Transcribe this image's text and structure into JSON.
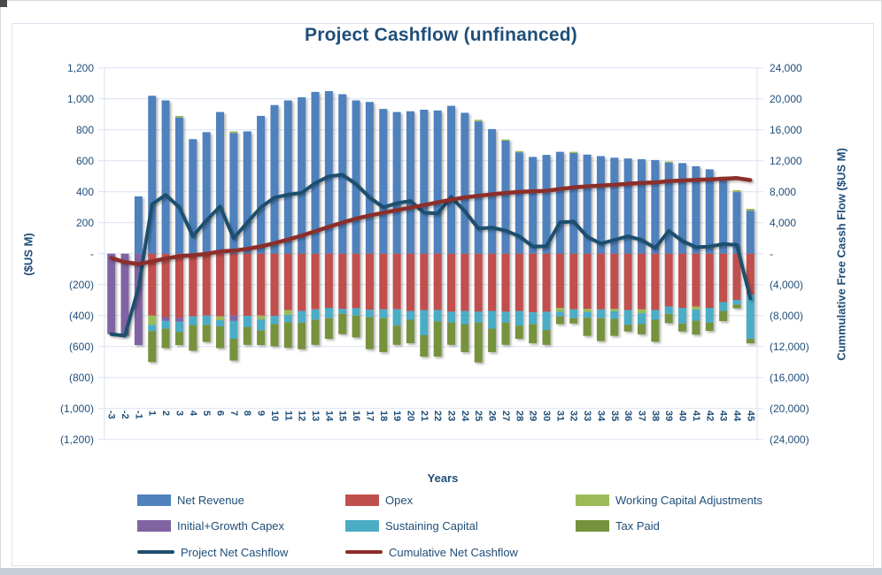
{
  "chart_data": {
    "type": "bar",
    "subtype": "stacked-bar-with-lines",
    "title": "Project Cashflow (unfinanced)",
    "x_axis": {
      "label": "Years",
      "categories": [
        "-3",
        "-2",
        "-1",
        "1",
        "2",
        "3",
        "4",
        "5",
        "6",
        "7",
        "8",
        "9",
        "10",
        "11",
        "12",
        "13",
        "14",
        "15",
        "16",
        "17",
        "18",
        "19",
        "20",
        "21",
        "22",
        "23",
        "24",
        "25",
        "26",
        "27",
        "28",
        "29",
        "30",
        "31",
        "32",
        "33",
        "34",
        "35",
        "36",
        "37",
        "38",
        "39",
        "40",
        "41",
        "42",
        "43",
        "44",
        "45"
      ]
    },
    "y_axis_left": {
      "label": "($US M)",
      "min": -1200,
      "max": 1200,
      "step": 200,
      "tick_labels": [
        "1,200",
        "1,000",
        "800",
        "600",
        "400",
        "200",
        "-",
        "(200)",
        "(400)",
        "(600)",
        "(800)",
        "(1,000)",
        "(1,200)"
      ]
    },
    "y_axis_right": {
      "label": "Cummulative Free Cassh Flow ($US M)",
      "min": -24000,
      "max": 24000,
      "step": 4000,
      "tick_labels": [
        "24,000",
        "20,000",
        "16,000",
        "12,000",
        "8,000",
        "4,000",
        "-",
        "(4,000)",
        "(8,000)",
        "(12,000)",
        "(16,000)",
        "(20,000)",
        "(24,000)"
      ]
    },
    "grid": true,
    "legend_position": "bottom",
    "series": {
      "net_revenue": {
        "name": "Net Revenue",
        "color": "#4F81BD",
        "type": "bar",
        "values": [
          0,
          0,
          370,
          1020,
          990,
          880,
          740,
          785,
          915,
          780,
          790,
          890,
          960,
          990,
          1010,
          1045,
          1050,
          1030,
          990,
          980,
          935,
          915,
          920,
          930,
          925,
          955,
          910,
          855,
          805,
          730,
          655,
          625,
          638,
          658,
          650,
          640,
          630,
          620,
          615,
          610,
          605,
          588,
          585,
          565,
          545,
          490,
          398,
          278
        ]
      },
      "working_capital_adjustments": {
        "name": "Working Capital Adjustments",
        "color": "#9BBB59",
        "type": "bar",
        "values": [
          0,
          0,
          0,
          -60,
          0,
          10,
          0,
          0,
          -25,
          10,
          0,
          -25,
          0,
          -30,
          0,
          0,
          0,
          0,
          0,
          0,
          0,
          0,
          0,
          0,
          0,
          0,
          0,
          10,
          0,
          8,
          8,
          0,
          0,
          -25,
          8,
          -20,
          0,
          -15,
          0,
          -25,
          0,
          8,
          0,
          -20,
          0,
          8,
          12,
          12
        ]
      },
      "opex": {
        "name": "Opex",
        "color": "#C0504D",
        "type": "bar",
        "values": [
          0,
          0,
          0,
          -400,
          -410,
          -415,
          -405,
          -400,
          -405,
          -400,
          -402,
          -400,
          -402,
          -365,
          -370,
          -360,
          -350,
          -356,
          -352,
          -362,
          -360,
          -360,
          -370,
          -365,
          -365,
          -375,
          -370,
          -375,
          -370,
          -375,
          -370,
          -379,
          -375,
          -350,
          -360,
          -356,
          -360,
          -356,
          -364,
          -360,
          -364,
          -341,
          -350,
          -341,
          -350,
          -313,
          -299,
          -265
        ]
      },
      "initial_growth_capex": {
        "name": "Initial+Growth Capex",
        "color": "#8064A2",
        "type": "bar",
        "values": [
          -520,
          -530,
          -590,
          0,
          -25,
          -25,
          0,
          0,
          0,
          -35,
          0,
          0,
          0,
          0,
          0,
          0,
          0,
          0,
          0,
          0,
          0,
          0,
          0,
          0,
          0,
          0,
          0,
          0,
          0,
          0,
          0,
          0,
          0,
          0,
          0,
          0,
          0,
          0,
          0,
          0,
          0,
          0,
          0,
          0,
          0,
          0,
          0,
          0
        ]
      },
      "sustaining_capital": {
        "name": "Sustaining Capital",
        "color": "#4BACC6",
        "type": "bar",
        "values": [
          0,
          0,
          0,
          -40,
          -50,
          -65,
          -57,
          -60,
          -40,
          -115,
          -72,
          -70,
          -53,
          -48,
          -76,
          -66,
          -67,
          -32,
          -48,
          -48,
          -57,
          -105,
          -57,
          -162,
          -72,
          -70,
          -86,
          -70,
          -114,
          -70,
          -95,
          -76,
          -118,
          -30,
          -57,
          -38,
          -57,
          -50,
          -95,
          -70,
          -63,
          -48,
          -101,
          -72,
          -95,
          -57,
          -30,
          -285
        ]
      },
      "tax_paid": {
        "name": "Tax Paid",
        "color": "#76923C",
        "type": "bar",
        "values": [
          0,
          0,
          0,
          -200,
          -125,
          -85,
          -165,
          -110,
          -140,
          -140,
          -115,
          -95,
          -143,
          -165,
          -171,
          -163,
          -133,
          -132,
          -141,
          -207,
          -219,
          -124,
          -152,
          -138,
          -228,
          -144,
          -180,
          -258,
          -152,
          -144,
          -85,
          -124,
          -96,
          -50,
          -34,
          -117,
          -148,
          -110,
          -44,
          -66,
          -142,
          -60,
          -52,
          -90,
          -54,
          -66,
          -24,
          -29
        ]
      },
      "project_net_cashflow": {
        "name": "Project Net Cashflow",
        "color": "#1D4F6E",
        "type": "line",
        "axis": "left",
        "values": [
          -520,
          -530,
          -220,
          320,
          380,
          300,
          113,
          215,
          305,
          100,
          201,
          300,
          362,
          382,
          393,
          456,
          500,
          510,
          449,
          363,
          299,
          326,
          341,
          265,
          260,
          366,
          274,
          162,
          169,
          149,
          113,
          46,
          49,
          203,
          207,
          109,
          65,
          89,
          112,
          89,
          36,
          147,
          82,
          42,
          46,
          62,
          57,
          -289
        ]
      },
      "cumulative_net_cashflow": {
        "name": "Cumulative Net Cashflow",
        "color": "#8C2D2B",
        "type": "line",
        "axis": "right",
        "values": [
          -550,
          -1100,
          -1330,
          -1000,
          -620,
          -320,
          -200,
          -30,
          290,
          400,
          620,
          940,
          1350,
          1820,
          2330,
          2900,
          3470,
          4020,
          4520,
          4930,
          5280,
          5620,
          5950,
          6280,
          6640,
          6980,
          7280,
          7480,
          7680,
          7850,
          7980,
          8050,
          8120,
          8350,
          8570,
          8700,
          8790,
          8900,
          9030,
          9140,
          9200,
          9360,
          9460,
          9530,
          9600,
          9680,
          9760,
          9500
        ]
      }
    },
    "legend": [
      {
        "label": "Net Revenue",
        "color": "#4F81BD",
        "swatch": "box"
      },
      {
        "label": "Opex",
        "color": "#C0504D",
        "swatch": "box"
      },
      {
        "label": "Working Capital Adjustments",
        "color": "#9BBB59",
        "swatch": "box"
      },
      {
        "label": "Initial+Growth Capex",
        "color": "#8064A2",
        "swatch": "box"
      },
      {
        "label": "Sustaining Capital",
        "color": "#4BACC6",
        "swatch": "box"
      },
      {
        "label": "Tax Paid",
        "color": "#76923C",
        "swatch": "box"
      },
      {
        "label": "Project Net Cashflow",
        "color": "#1D4F6E",
        "swatch": "line"
      },
      {
        "label": "Cumulative Net Cashflow",
        "color": "#8C2D2B",
        "swatch": "line"
      }
    ],
    "colors": {
      "text": "#1F4E79",
      "gridline": "#D9E1F2",
      "background": "#FFFFFF"
    }
  }
}
